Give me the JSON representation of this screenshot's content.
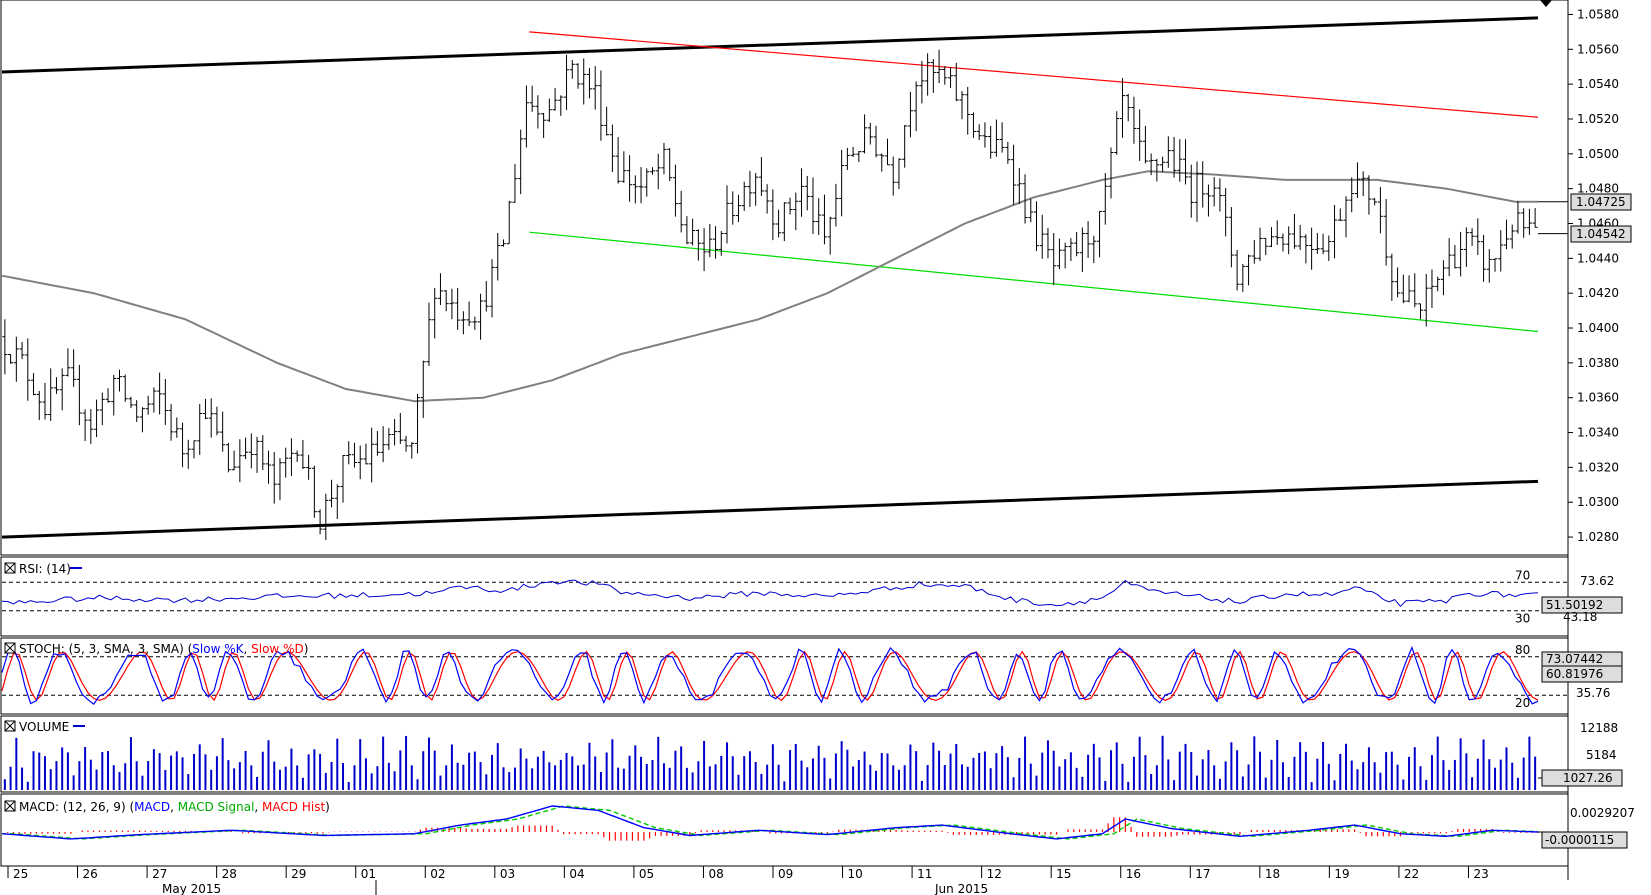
{
  "chart_data": {
    "type": "ohlc",
    "instrument_timeframe": "",
    "main": {
      "y_ticks": [
        "1.0580",
        "1.0560",
        "1.0540",
        "1.0520",
        "1.0500",
        "1.0480",
        "1.0460",
        "1.0440",
        "1.0420",
        "1.0400",
        "1.0380",
        "1.0360",
        "1.0340",
        "1.0320",
        "1.0300",
        "1.0280"
      ],
      "ylim": [
        1.0272,
        1.0586
      ],
      "current_price_label": "1.04542",
      "ma_value_label": "1.04725",
      "ohlc_keypoints_day_price": [
        [
          0,
          1.0395
        ],
        [
          1,
          1.038
        ],
        [
          2,
          1.0355
        ],
        [
          3,
          1.037
        ],
        [
          4,
          1.0345
        ],
        [
          5,
          1.037
        ],
        [
          6,
          1.035
        ],
        [
          7,
          1.036
        ],
        [
          8,
          1.033
        ],
        [
          9,
          1.0355
        ],
        [
          10,
          1.032
        ],
        [
          11,
          1.0335
        ],
        [
          12,
          1.031
        ],
        [
          13,
          1.0335
        ],
        [
          14,
          1.029
        ],
        [
          15,
          1.032
        ],
        [
          16,
          1.0325
        ],
        [
          17,
          1.0335
        ],
        [
          18,
          1.033
        ],
        [
          19,
          1.0425
        ],
        [
          20,
          1.041
        ],
        [
          21,
          1.041
        ],
        [
          22,
          1.045
        ],
        [
          23,
          1.053
        ],
        [
          24,
          1.0525
        ],
        [
          25,
          1.055
        ],
        [
          26,
          1.0535
        ],
        [
          27,
          1.049
        ],
        [
          28,
          1.048
        ],
        [
          29,
          1.0495
        ],
        [
          30,
          1.045
        ],
        [
          31,
          1.0445
        ],
        [
          32,
          1.047
        ],
        [
          33,
          1.049
        ],
        [
          34,
          1.046
        ],
        [
          35,
          1.048
        ],
        [
          36,
          1.045
        ],
        [
          37,
          1.05
        ],
        [
          38,
          1.051
        ],
        [
          39,
          1.049
        ],
        [
          40,
          1.0545
        ],
        [
          41,
          1.0545
        ],
        [
          42,
          1.053
        ],
        [
          43,
          1.0505
        ],
        [
          44,
          1.05
        ],
        [
          45,
          1.046
        ],
        [
          46,
          1.0435
        ],
        [
          47,
          1.0445
        ],
        [
          48,
          1.046
        ],
        [
          49,
          1.053
        ],
        [
          50,
          1.049
        ],
        [
          51,
          1.05
        ],
        [
          52,
          1.048
        ],
        [
          53,
          1.0485
        ],
        [
          54,
          1.043
        ],
        [
          55,
          1.045
        ],
        [
          56,
          1.0455
        ],
        [
          57,
          1.045
        ],
        [
          58,
          1.045
        ],
        [
          59,
          1.0485
        ],
        [
          60,
          1.0475
        ],
        [
          61,
          1.042
        ],
        [
          62,
          1.041
        ],
        [
          63,
          1.0435
        ],
        [
          64,
          1.045
        ],
        [
          65,
          1.0435
        ],
        [
          66,
          1.046
        ],
        [
          67,
          1.0454
        ]
      ],
      "ma200_keypoints_day_price": [
        [
          0,
          1.043
        ],
        [
          4,
          1.042
        ],
        [
          8,
          1.0405
        ],
        [
          12,
          1.038
        ],
        [
          15,
          1.0365
        ],
        [
          18,
          1.0358
        ],
        [
          21,
          1.036
        ],
        [
          24,
          1.037
        ],
        [
          27,
          1.0385
        ],
        [
          30,
          1.0395
        ],
        [
          33,
          1.0405
        ],
        [
          36,
          1.042
        ],
        [
          39,
          1.044
        ],
        [
          42,
          1.046
        ],
        [
          45,
          1.0475
        ],
        [
          48,
          1.0485
        ],
        [
          50,
          1.049
        ],
        [
          53,
          1.0488
        ],
        [
          56,
          1.0485
        ],
        [
          60,
          1.0485
        ],
        [
          63,
          1.048
        ],
        [
          66,
          1.04725
        ]
      ],
      "trendlines_day_price": {
        "upper_black": [
          [
            0,
            1.0547
          ],
          [
            67,
            1.0578
          ]
        ],
        "lower_black": [
          [
            0,
            1.028
          ],
          [
            67,
            1.0312
          ]
        ],
        "red_resistance": [
          [
            23,
            1.057
          ],
          [
            67,
            1.0521
          ]
        ],
        "green_support": [
          [
            23,
            1.0455
          ],
          [
            67,
            1.0398
          ]
        ]
      }
    },
    "rsi": {
      "title": "RSI: (14)",
      "levels": [
        "70",
        "30"
      ],
      "right_labels": [
        "73.62",
        "51.50192",
        "43.18"
      ],
      "keypoints_day_value": [
        [
          0,
          40
        ],
        [
          4,
          48
        ],
        [
          8,
          45
        ],
        [
          12,
          50
        ],
        [
          16,
          52
        ],
        [
          19,
          55
        ],
        [
          20,
          64
        ],
        [
          22,
          58
        ],
        [
          24,
          72
        ],
        [
          26,
          68
        ],
        [
          27,
          56
        ],
        [
          30,
          48
        ],
        [
          33,
          55
        ],
        [
          36,
          50
        ],
        [
          40,
          67
        ],
        [
          42,
          65
        ],
        [
          44,
          46
        ],
        [
          46,
          38
        ],
        [
          48,
          48
        ],
        [
          49,
          69
        ],
        [
          50,
          58
        ],
        [
          54,
          42
        ],
        [
          56,
          54
        ],
        [
          58,
          52
        ],
        [
          59,
          62
        ],
        [
          60,
          50
        ],
        [
          61,
          40
        ],
        [
          63,
          44
        ],
        [
          64,
          55
        ],
        [
          66,
          52
        ],
        [
          67,
          51.5
        ]
      ]
    },
    "stoch": {
      "title": "STOCH: (5, 3, SMA, 3, SMA)",
      "legend": [
        "Slow %K",
        "Slow %D"
      ],
      "legend_colors": [
        "#0000ff",
        "#ff0000"
      ],
      "levels": [
        "80",
        "20"
      ],
      "right_labels": [
        "73.07442",
        "60.81976",
        "35.76"
      ]
    },
    "volume": {
      "title": "VOLUME",
      "right_labels": [
        "12188",
        "5184",
        "1027.26"
      ]
    },
    "macd": {
      "title": "MACD: (12, 26, 9)",
      "legend": [
        "MACD",
        "MACD Signal",
        "MACD Hist"
      ],
      "legend_colors": [
        "#0000ff",
        "#00cc00",
        "#ff0000"
      ],
      "right_labels": [
        "0.0029207",
        "-0.0000115"
      ],
      "keypoints_day_value": [
        [
          0,
          -0.0002
        ],
        [
          3,
          -0.0008
        ],
        [
          6,
          -0.0003
        ],
        [
          10,
          0.0002
        ],
        [
          14,
          -0.0004
        ],
        [
          18,
          -0.0002
        ],
        [
          20,
          0.0008
        ],
        [
          22,
          0.0015
        ],
        [
          24,
          0.003
        ],
        [
          26,
          0.0025
        ],
        [
          28,
          0.0005
        ],
        [
          30,
          -0.0004
        ],
        [
          33,
          0.0002
        ],
        [
          36,
          -0.0003
        ],
        [
          39,
          0.0005
        ],
        [
          41,
          0.0008
        ],
        [
          44,
          -0.0002
        ],
        [
          46,
          -0.0008
        ],
        [
          48,
          -0.0002
        ],
        [
          49,
          0.0015
        ],
        [
          51,
          0.0004
        ],
        [
          54,
          -0.0005
        ],
        [
          57,
          0.0002
        ],
        [
          59,
          0.0008
        ],
        [
          61,
          -0.0002
        ],
        [
          63,
          -0.0005
        ],
        [
          65,
          0.0002
        ],
        [
          67,
          0.0
        ]
      ]
    },
    "x_axis": {
      "day_labels": [
        "25",
        "26",
        "27",
        "28",
        "29",
        "01",
        "02",
        "03",
        "04",
        "05",
        "08",
        "09",
        "10",
        "11",
        "12",
        "15",
        "16",
        "17",
        "18",
        "19",
        "22",
        "23"
      ],
      "months": [
        "May 2015",
        "Jun 2015"
      ]
    },
    "colors": {
      "bars": "#000000",
      "ma": "#808080",
      "red_line": "#ff0000",
      "green_line": "#00dd00",
      "rsi": "#0000cc",
      "stoch_k": "#0000ff",
      "stoch_d": "#ff0000",
      "volume": "#0000cc",
      "macd": "#0000ff",
      "macd_signal": "#00cc00",
      "macd_hist": "#ff0000"
    }
  }
}
